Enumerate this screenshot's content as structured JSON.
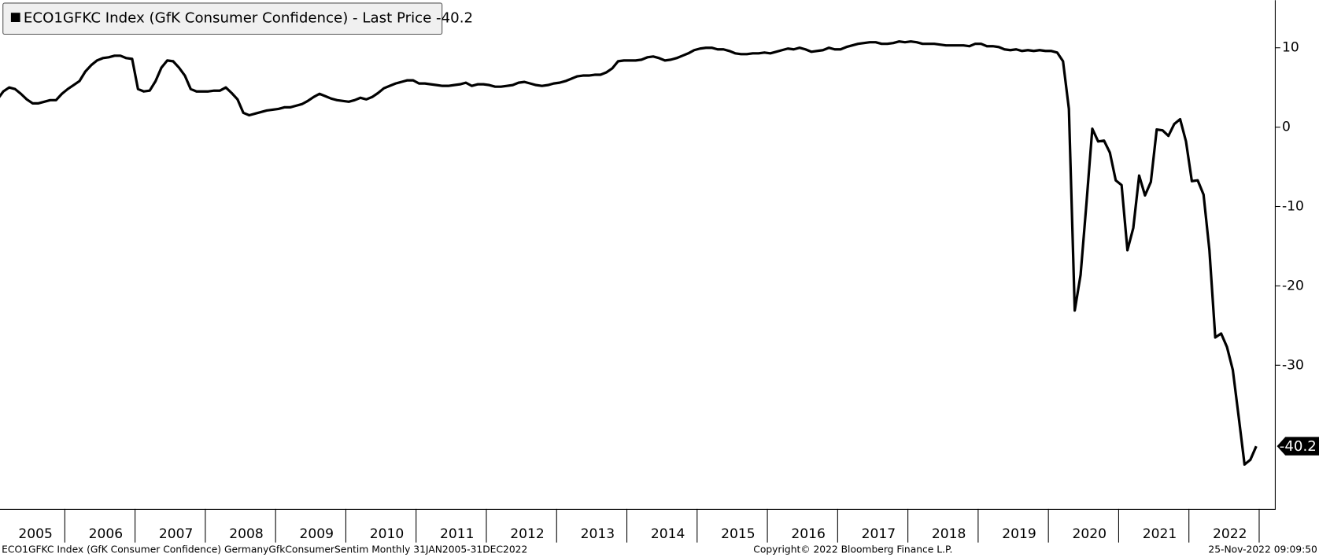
{
  "chart_data": {
    "type": "line",
    "legend_title": "ECO1GFKC Index (GfK Consumer Confidence) - Last Price",
    "footer_left": "ECO1GFKC Index (GfK Consumer Confidence) GermanyGfkConsumerSentim  Monthly 31JAN2005-31DEC2022",
    "footer_center": "Copyright© 2022 Bloomberg Finance L.P.",
    "footer_right": "25-Nov-2022 09:09:50",
    "categories": [
      null,
      null,
      null,
      null,
      null,
      null,
      "2005",
      null,
      null,
      null,
      null,
      null,
      null,
      null,
      null,
      null,
      null,
      null,
      "2006",
      null,
      null,
      null,
      null,
      null,
      null,
      null,
      null,
      null,
      null,
      null,
      "2007",
      null,
      null,
      null,
      null,
      null,
      null,
      null,
      null,
      null,
      null,
      null,
      "2008",
      null,
      null,
      null,
      null,
      null,
      null,
      null,
      null,
      null,
      null,
      null,
      "2009",
      null,
      null,
      null,
      null,
      null,
      null,
      null,
      null,
      null,
      null,
      null,
      "2010",
      null,
      null,
      null,
      null,
      null,
      null,
      null,
      null,
      null,
      null,
      null,
      "2011",
      null,
      null,
      null,
      null,
      null,
      null,
      null,
      null,
      null,
      null,
      null,
      "2012",
      null,
      null,
      null,
      null,
      null,
      null,
      null,
      null,
      null,
      null,
      null,
      "2013",
      null,
      null,
      null,
      null,
      null,
      null,
      null,
      null,
      null,
      null,
      null,
      "2014",
      null,
      null,
      null,
      null,
      null,
      null,
      null,
      null,
      null,
      null,
      null,
      "2015",
      null,
      null,
      null,
      null,
      null,
      null,
      null,
      null,
      null,
      null,
      null,
      "2016",
      null,
      null,
      null,
      null,
      null,
      null,
      null,
      null,
      null,
      null,
      null,
      "2017",
      null,
      null,
      null,
      null,
      null,
      null,
      null,
      null,
      null,
      null,
      null,
      "2018",
      null,
      null,
      null,
      null,
      null,
      null,
      null,
      null,
      null,
      null,
      null,
      "2019",
      null,
      null,
      null,
      null,
      null,
      null,
      null,
      null,
      null,
      null,
      null,
      "2020",
      null,
      null,
      null,
      null,
      null,
      null,
      null,
      null,
      null,
      null,
      null,
      "2021",
      null,
      null,
      null,
      null,
      null,
      null,
      null,
      null,
      null,
      null,
      null,
      "2022",
      null,
      null,
      null,
      null,
      null
    ],
    "series": [
      {
        "name": "ECO1GFKC Index (GfK Consumer Confidence) - Last Price",
        "color": "#000000",
        "values": [
          3.5,
          4.5,
          5.0,
          4.8,
          4.2,
          3.5,
          3.0,
          3.0,
          3.2,
          3.4,
          3.4,
          4.2,
          4.8,
          5.3,
          5.8,
          7.0,
          7.8,
          8.4,
          8.7,
          8.8,
          9.0,
          9.0,
          8.7,
          8.6,
          4.8,
          4.5,
          4.6,
          5.8,
          7.5,
          8.4,
          8.3,
          7.5,
          6.5,
          4.8,
          4.5,
          4.5,
          4.5,
          4.6,
          4.6,
          5.0,
          4.3,
          3.5,
          1.8,
          1.5,
          1.7,
          1.9,
          2.1,
          2.2,
          2.3,
          2.5,
          2.5,
          2.7,
          2.9,
          3.3,
          3.8,
          4.2,
          3.9,
          3.6,
          3.4,
          3.3,
          3.2,
          3.4,
          3.7,
          3.5,
          3.8,
          4.3,
          4.9,
          5.2,
          5.5,
          5.7,
          5.9,
          5.9,
          5.5,
          5.5,
          5.4,
          5.3,
          5.2,
          5.2,
          5.3,
          5.4,
          5.6,
          5.2,
          5.4,
          5.4,
          5.3,
          5.1,
          5.1,
          5.2,
          5.3,
          5.6,
          5.7,
          5.5,
          5.3,
          5.2,
          5.3,
          5.5,
          5.6,
          5.8,
          6.1,
          6.4,
          6.5,
          6.5,
          6.6,
          6.6,
          6.9,
          7.4,
          8.3,
          8.4,
          8.4,
          8.4,
          8.5,
          8.8,
          8.9,
          8.7,
          8.4,
          8.5,
          8.7,
          9.0,
          9.3,
          9.7,
          9.9,
          10.0,
          10.0,
          9.8,
          9.8,
          9.6,
          9.3,
          9.2,
          9.2,
          9.3,
          9.3,
          9.4,
          9.3,
          9.5,
          9.7,
          9.9,
          9.8,
          10.0,
          9.8,
          9.5,
          9.6,
          9.7,
          10.0,
          9.8,
          9.8,
          10.1,
          10.3,
          10.5,
          10.6,
          10.7,
          10.7,
          10.5,
          10.5,
          10.6,
          10.8,
          10.7,
          10.8,
          10.7,
          10.5,
          10.5,
          10.5,
          10.4,
          10.3,
          10.3,
          10.3,
          10.3,
          10.2,
          10.5,
          10.5,
          10.2,
          10.2,
          10.1,
          9.8,
          9.7,
          9.8,
          9.6,
          9.7,
          9.6,
          9.7,
          9.6,
          9.6,
          9.4,
          8.3,
          2.3,
          -23.1,
          -18.6,
          -9.6,
          -0.2,
          -1.8,
          -1.7,
          -3.2,
          -6.7,
          -7.3,
          -15.5,
          -12.7,
          -6.1,
          -8.6,
          -6.9,
          -0.3,
          -0.4,
          -1.1,
          0.4,
          1.0,
          -1.8,
          -6.8,
          -6.7,
          -8.5,
          -15.5,
          -26.5,
          -26.0,
          -27.7,
          -30.6,
          -36.5,
          -42.5,
          -41.9,
          -40.2
        ]
      }
    ],
    "ylim": [
      -48.1,
      16
    ],
    "yticks": [
      10,
      0,
      -10,
      -20,
      -30
    ]
  }
}
